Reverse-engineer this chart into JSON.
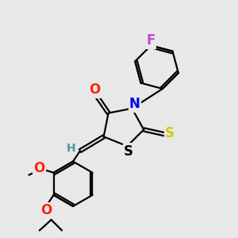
{
  "bg_color": "#e8e8e8",
  "atom_colors": {
    "C": "#000000",
    "H": "#4a9a9a",
    "F": "#cc44cc",
    "O": "#ff2200",
    "N": "#0000ee",
    "S_thio": "#cccc00",
    "S_ring": "#000000"
  },
  "bond_color": "#000000",
  "bond_width": 1.6,
  "font_size": 12
}
